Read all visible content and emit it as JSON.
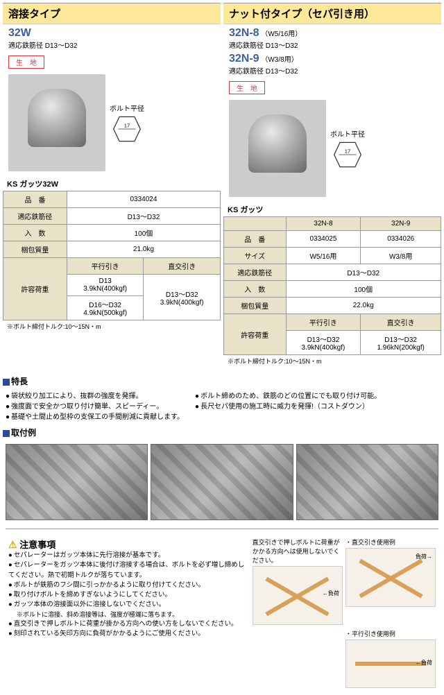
{
  "left": {
    "header": "溶接タイプ",
    "model": "32W",
    "compat": "適応鉄筋径 D13～D32",
    "badge": "生　地",
    "bolt_label": "ボルト平径",
    "hex_value": "17",
    "table_title": "KS ガッツ32W",
    "rows": {
      "item_no_h": "品　番",
      "item_no": "0334024",
      "compat_h": "適応鉄筋径",
      "compat_v": "D13～D32",
      "qty_h": "入　数",
      "qty_v": "100個",
      "weight_h": "梱包質量",
      "weight_v": "21.0kg",
      "load_h": "許容荷重",
      "parallel_h": "平行引き",
      "cross_h": "直交引き",
      "p1": "D13\n3.9kN(400kgf)",
      "p2": "D16～D32\n4.9kN(500kgf)",
      "c1": "D13～D32\n3.9kN(400kgf)"
    },
    "torque": "※ボルト締付トルク:10～15N・m"
  },
  "right": {
    "header": "ナット付タイプ（セパ引き用）",
    "model1": "32N-8",
    "model1_sub": "（W5/16用）",
    "compat1": "適応鉄筋径 D13～D32",
    "model2": "32N-9",
    "model2_sub": "（W3/8用）",
    "compat2": "適応鉄筋径 D13～D32",
    "badge": "生　地",
    "bolt_label": "ボルト平径",
    "hex_value": "17",
    "table_title": "KS ガッツ",
    "cols": {
      "c1": "32N-8",
      "c2": "32N-9"
    },
    "rows": {
      "item_no_h": "品　番",
      "item1": "0334025",
      "item2": "0334026",
      "size_h": "サイズ",
      "size1": "W5/16用",
      "size2": "W3/8用",
      "compat_h": "適応鉄筋径",
      "compat_v": "D13～D32",
      "qty_h": "入　数",
      "qty_v": "100個",
      "weight_h": "梱包質量",
      "weight_v": "22.0kg",
      "load_h": "許容荷重",
      "parallel_h": "平行引き",
      "cross_h": "直交引き",
      "p1": "D13～D32\n3.9kN(400kgf)",
      "c1": "D13～D32\n1.96kN(200kgf)"
    },
    "torque": "※ボルト締付トルク:10～15N・m"
  },
  "features_title": "特長",
  "features_left": [
    "袋状絞り加工により、抜群の強度を発揮。",
    "強度面で安全かつ取り付け簡単、スピーディー。",
    "基礎や土間止め型枠の支保工の手間削減に貢献します。"
  ],
  "features_right": [
    "ボルト締めのため、鉄筋のどの位置にでも取り付け可能。",
    "長尺セパ使用の施工時に威力を発揮!（コストダウン）"
  ],
  "install_title": "取付例",
  "caution_title": "注意事項",
  "caution_items": [
    "セパレーターはガッツ本体に先行溶接が基本です。",
    "セパレーターをガッツ本体に後付け溶接する場合は、ボルトを必ず増し締めしてください。熱で初期トルクが落ちています。",
    "ボルトが鉄筋のフシ間に引っかかるように取り付けてください。",
    "取り付けボルトを締めすぎないようにしてください。",
    "ガッツ本体の溶接面以外に溶接しないでください。",
    "直交引きで押しボルトに荷重が掛かる方向への使い方をしないでください。",
    "刻印されている矢印方向に負荷がかかるようにご使用ください。"
  ],
  "caution_sub": "※ボルトに溶接、斜め溶接等は、強度が極端に落ちます。",
  "diag1_text": "直交引きで押しボルトに荷重がかかる方向へは使用しないでください。",
  "diag1_arrow": "←負荷",
  "diag2_title": "・直交引き使用例",
  "diag2_arrow": "負荷→",
  "diag3_title": "・平行引き使用例",
  "diag3_arrow": "←負荷"
}
